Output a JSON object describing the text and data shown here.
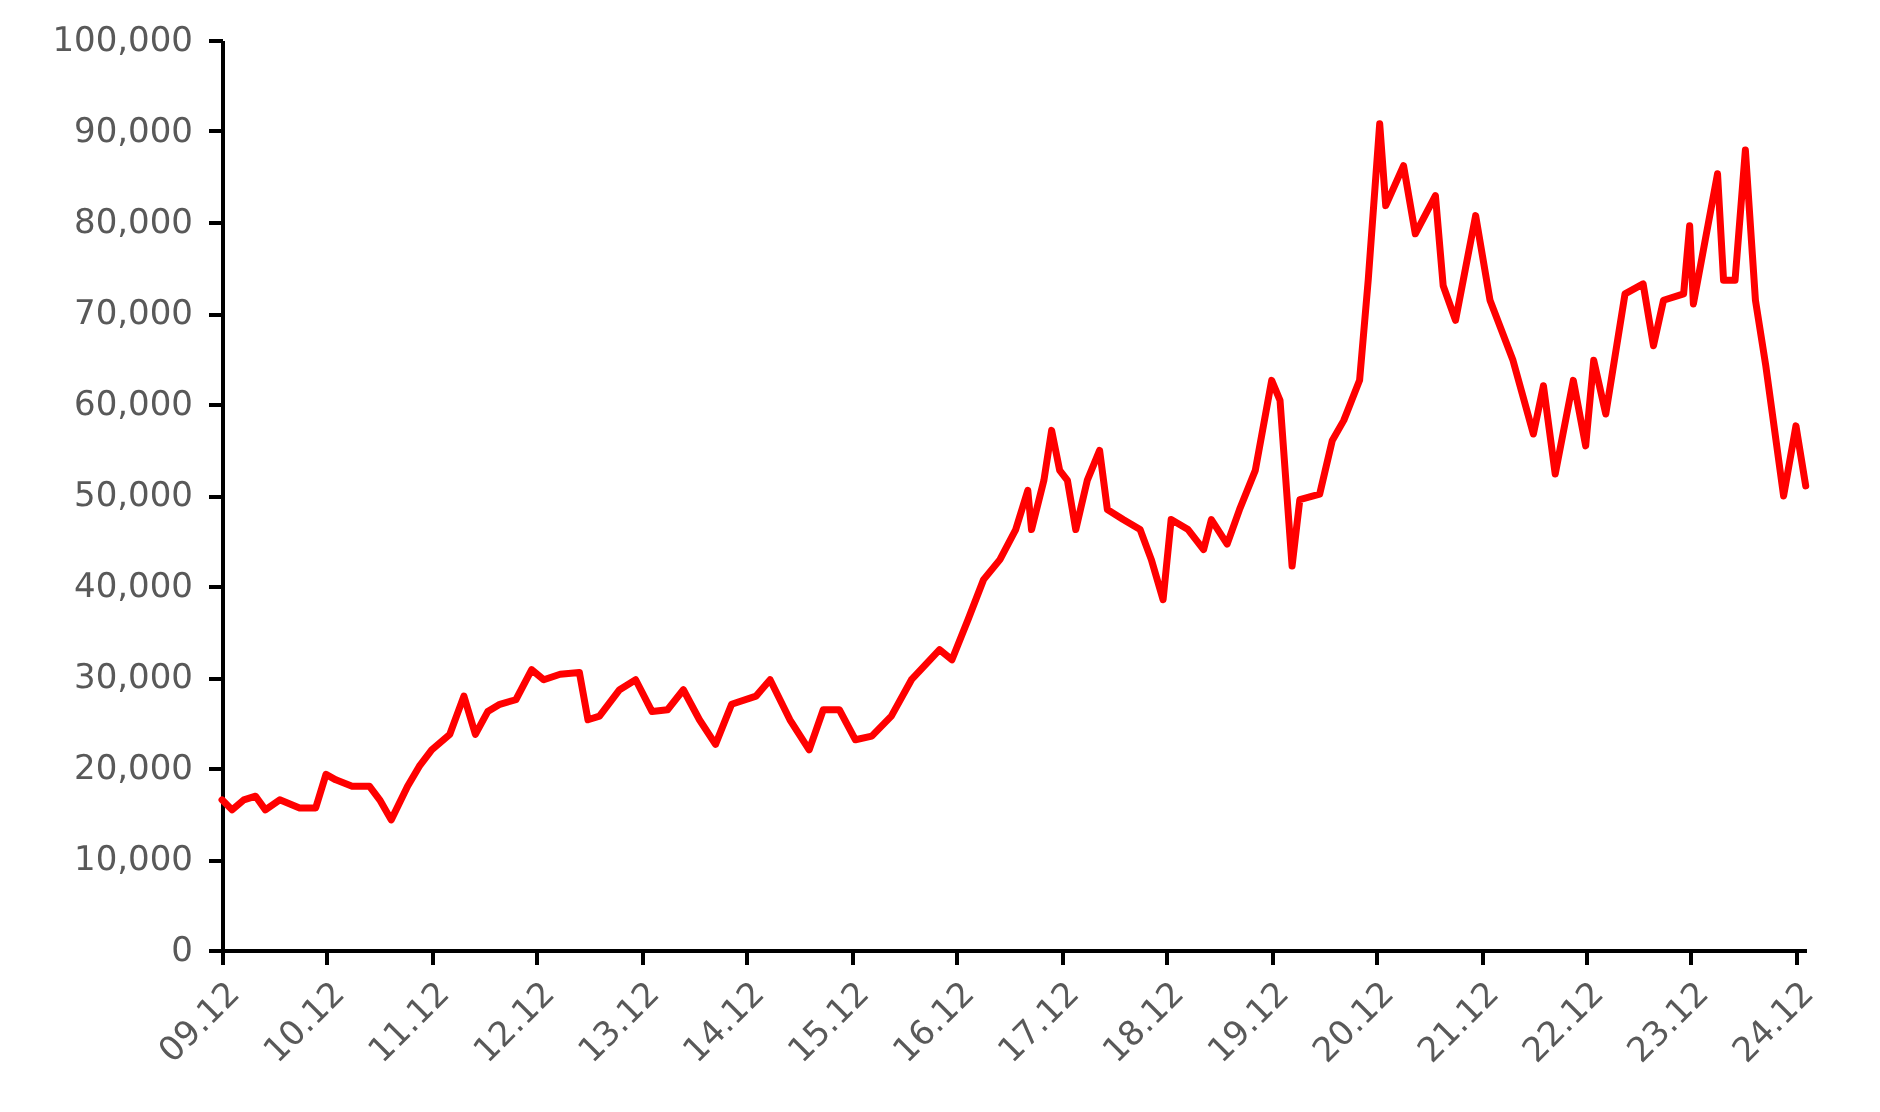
{
  "chart_data": {
    "type": "line",
    "x": [
      "2009-12-01",
      "2010-01-05",
      "2010-02-15",
      "2010-03-28",
      "2010-05-01",
      "2010-06-20",
      "2010-08-28",
      "2010-10-23",
      "2010-11-28",
      "2011-01-01",
      "2011-02-27",
      "2011-04-28",
      "2011-06-03",
      "2011-07-13",
      "2011-09-08",
      "2011-10-19",
      "2011-12-01",
      "2012-02-02",
      "2012-03-22",
      "2012-05-01",
      "2012-06-13",
      "2012-07-25",
      "2012-09-19",
      "2012-11-13",
      "2012-12-25",
      "2013-02-20",
      "2013-04-28",
      "2013-05-28",
      "2013-07-07",
      "2013-09-15",
      "2013-11-10",
      "2014-01-06",
      "2014-03-01",
      "2014-04-25",
      "2014-06-20",
      "2014-08-15",
      "2014-10-10",
      "2015-01-03",
      "2015-02-21",
      "2015-05-01",
      "2015-07-07",
      "2015-08-25",
      "2015-10-20",
      "2015-12-15",
      "2016-02-10",
      "2016-04-18",
      "2016-06-27",
      "2016-10-03",
      "2016-11-15",
      "2017-01-10",
      "2017-03-05",
      "2017-05-01",
      "2017-06-25",
      "2017-08-06",
      "2017-08-19",
      "2017-10-01",
      "2017-10-28",
      "2017-11-25",
      "2017-12-22",
      "2018-01-20",
      "2018-03-01",
      "2018-04-13",
      "2018-05-10",
      "2018-07-04",
      "2018-09-01",
      "2018-10-10",
      "2018-11-20",
      "2018-12-18",
      "2019-02-15",
      "2019-04-10",
      "2019-05-07",
      "2019-07-01",
      "2019-08-13",
      "2019-10-07",
      "2019-12-03",
      "2020-01-01",
      "2020-02-12",
      "2020-03-10",
      "2020-05-18",
      "2020-07-01",
      "2020-08-10",
      "2020-10-04",
      "2020-11-03",
      "2020-12-13",
      "2021-01-03",
      "2021-03-06",
      "2021-04-16",
      "2021-06-25",
      "2021-07-22",
      "2021-09-03",
      "2021-11-12",
      "2022-01-01",
      "2022-03-22",
      "2022-06-01",
      "2022-07-06",
      "2022-08-16",
      "2022-10-18",
      "2022-11-30",
      "2022-12-28",
      "2023-02-08",
      "2023-04-16",
      "2023-06-18",
      "2023-07-24",
      "2023-08-28",
      "2023-11-06",
      "2023-11-27",
      "2023-12-10",
      "2024-03-03",
      "2024-03-24",
      "2024-05-03",
      "2024-06-08",
      "2024-07-13",
      "2024-08-18",
      "2024-10-19",
      "2024-12-01",
      "2025-01-04"
    ],
    "series": [
      {
        "color": "#ff0000",
        "values": [
          16500,
          15400,
          16500,
          16900,
          15400,
          16500,
          15600,
          15600,
          19300,
          18700,
          18000,
          18000,
          16500,
          14300,
          18000,
          20200,
          22000,
          23700,
          27900,
          23700,
          26200,
          27000,
          27500,
          30800,
          29700,
          30300,
          30500,
          25300,
          25700,
          28600,
          29700,
          26200,
          26400,
          28600,
          25300,
          22600,
          27000,
          27900,
          29700,
          25300,
          22000,
          26400,
          26400,
          23100,
          23500,
          25700,
          29700,
          33000,
          31900,
          36300,
          40700,
          42900,
          46200,
          50500,
          46200,
          51600,
          57100,
          52700,
          51600,
          46200,
          51600,
          54900,
          48400,
          47300,
          46200,
          42900,
          38500,
          47300,
          46200,
          44000,
          47300,
          44600,
          48400,
          52700,
          62600,
          60400,
          42200,
          49500,
          50100,
          56000,
          58200,
          62600,
          73600,
          90800,
          81800,
          86200,
          78700,
          82900,
          73000,
          69200,
          80700,
          71400,
          64800,
          56700,
          62000,
          52300,
          62600,
          55400,
          64800,
          58900,
          72100,
          73200,
          66400,
          71400,
          72100,
          79600,
          71000,
          85300,
          73600,
          73600,
          87900,
          71400,
          64200,
          49900,
          57600,
          51000
        ]
      }
    ],
    "xlim": [
      "2009-12-01",
      "2025-01-05"
    ],
    "xticks": [
      {
        "value": "2009-12-01",
        "label": "09.12"
      },
      {
        "value": "2010-12-01",
        "label": "10.12"
      },
      {
        "value": "2011-12-01",
        "label": "11.12"
      },
      {
        "value": "2012-12-01",
        "label": "12.12"
      },
      {
        "value": "2013-12-01",
        "label": "13.12"
      },
      {
        "value": "2014-12-01",
        "label": "14.12"
      },
      {
        "value": "2015-12-01",
        "label": "15.12"
      },
      {
        "value": "2016-12-01",
        "label": "16.12"
      },
      {
        "value": "2017-12-01",
        "label": "17.12"
      },
      {
        "value": "2018-12-01",
        "label": "18.12"
      },
      {
        "value": "2019-12-01",
        "label": "19.12"
      },
      {
        "value": "2020-12-01",
        "label": "20.12"
      },
      {
        "value": "2021-12-01",
        "label": "21.12"
      },
      {
        "value": "2022-12-01",
        "label": "22.12"
      },
      {
        "value": "2023-12-01",
        "label": "23.12"
      },
      {
        "value": "2024-12-01",
        "label": "24.12"
      }
    ],
    "ylim": [
      0,
      100000
    ],
    "yticks": [
      0,
      {
        "value": 10000,
        "label": "10,000"
      },
      {
        "value": 20000,
        "label": "20,000"
      },
      {
        "value": 30000,
        "label": "30,000"
      },
      {
        "value": 40000,
        "label": "40,000"
      },
      {
        "value": 50000,
        "label": "50,000"
      },
      {
        "value": 60000,
        "label": "60,000"
      },
      {
        "value": 70000,
        "label": "70,000"
      },
      {
        "value": 80000,
        "label": "80,000"
      },
      {
        "value": 90000,
        "label": "90,000"
      },
      {
        "value": 100000,
        "label": "100,000"
      }
    ],
    "grid": false,
    "marker": "none",
    "line_style": "solid"
  }
}
